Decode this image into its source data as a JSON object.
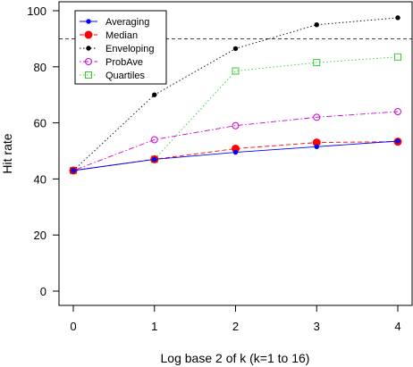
{
  "chart_data": {
    "type": "line",
    "title": "",
    "xlabel": "Log base 2 of k (k=1 to 16)",
    "ylabel": "Hit rate",
    "x": [
      0,
      1,
      2,
      3,
      4
    ],
    "xticks": [
      "0",
      "1",
      "2",
      "3",
      "4"
    ],
    "yticks": [
      "0",
      "20",
      "40",
      "60",
      "80",
      "100"
    ],
    "xlim": [
      0,
      4
    ],
    "ylim": [
      0,
      100
    ],
    "grid": false,
    "legend_position": "top-left",
    "reference_line": {
      "y": 90,
      "style": "dashed"
    },
    "series": [
      {
        "name": "Averaging",
        "values": [
          43,
          47,
          49.5,
          51.5,
          53.5
        ],
        "color": "#0000ff",
        "line": "solid",
        "marker": "small-filled-circle"
      },
      {
        "name": "Median",
        "values": [
          43,
          47,
          50.8,
          53,
          53.3
        ],
        "color": "#ff0000",
        "line": "dashed",
        "marker": "filled-circle"
      },
      {
        "name": "Enveloping",
        "values": [
          43,
          70,
          86.5,
          95,
          97.5
        ],
        "color": "#000000",
        "line": "dotted",
        "marker": "small-filled-circle"
      },
      {
        "name": "ProbAve",
        "values": [
          43,
          54,
          59,
          62,
          64
        ],
        "color": "#cc00cc",
        "line": "dotdash",
        "marker": "open-circle"
      },
      {
        "name": "Quartiles",
        "values": [
          43,
          47,
          78.5,
          81.5,
          83.5
        ],
        "color": "#33cc33",
        "line": "dotted",
        "marker": "open-square"
      }
    ]
  }
}
